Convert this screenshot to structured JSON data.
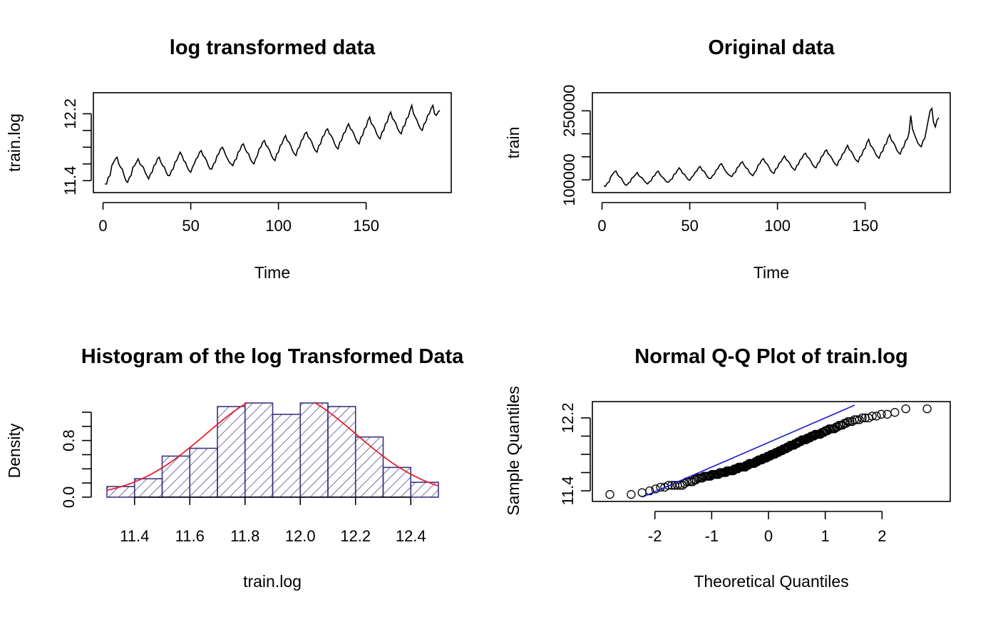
{
  "chart_data": [
    {
      "type": "line",
      "title": "log transformed data",
      "xlabel": "Time",
      "ylabel": "train.log",
      "xlim": [
        0,
        180
      ],
      "ylim": [
        11.3,
        12.4
      ],
      "x_ticks": [
        "0",
        "50",
        "100",
        "150"
      ],
      "y_ticks": [
        "11.4",
        "12.2"
      ],
      "y_tick_values": [
        11.4,
        11.6,
        11.8,
        12.0,
        12.2
      ],
      "series_color": "#000000",
      "y": [
        11.36,
        11.36,
        11.44,
        11.46,
        11.58,
        11.62,
        11.66,
        11.68,
        11.6,
        11.56,
        11.54,
        11.46,
        11.4,
        11.38,
        11.44,
        11.46,
        11.56,
        11.58,
        11.62,
        11.66,
        11.6,
        11.58,
        11.56,
        11.5,
        11.46,
        11.42,
        11.48,
        11.5,
        11.58,
        11.6,
        11.66,
        11.68,
        11.62,
        11.58,
        11.56,
        11.5,
        11.46,
        11.46,
        11.52,
        11.54,
        11.62,
        11.64,
        11.7,
        11.74,
        11.7,
        11.64,
        11.62,
        11.56,
        11.52,
        11.5,
        11.56,
        11.6,
        11.66,
        11.68,
        11.74,
        11.76,
        11.7,
        11.68,
        11.64,
        11.58,
        11.54,
        11.54,
        11.6,
        11.62,
        11.7,
        11.72,
        11.78,
        11.8,
        11.76,
        11.7,
        11.66,
        11.62,
        11.6,
        11.58,
        11.64,
        11.66,
        11.74,
        11.76,
        11.82,
        11.84,
        11.78,
        11.74,
        11.72,
        11.66,
        11.62,
        11.6,
        11.66,
        11.7,
        11.78,
        11.8,
        11.86,
        11.88,
        11.82,
        11.8,
        11.76,
        11.7,
        11.66,
        11.64,
        11.72,
        11.74,
        11.82,
        11.84,
        11.9,
        11.94,
        11.88,
        11.86,
        11.82,
        11.76,
        11.72,
        11.7,
        11.78,
        11.8,
        11.88,
        11.9,
        11.96,
        11.98,
        11.92,
        11.9,
        11.86,
        11.8,
        11.76,
        11.74,
        11.82,
        11.84,
        11.92,
        11.94,
        12.0,
        12.02,
        11.96,
        11.94,
        11.9,
        11.84,
        11.8,
        11.78,
        11.86,
        11.88,
        11.96,
        11.98,
        12.04,
        12.08,
        12.02,
        12.0,
        11.96,
        11.9,
        11.86,
        11.84,
        11.92,
        11.94,
        12.02,
        12.04,
        12.12,
        12.16,
        12.08,
        12.06,
        12.02,
        11.96,
        11.92,
        11.9,
        11.98,
        12.0,
        12.08,
        12.1,
        12.18,
        12.22,
        12.14,
        12.12,
        12.08,
        12.02,
        11.98,
        11.96,
        12.04,
        12.06,
        12.14,
        12.16,
        12.24,
        12.3,
        12.2,
        12.16,
        12.12,
        12.06,
        12.02,
        12.0,
        12.08,
        12.1,
        12.18,
        12.2,
        12.26,
        12.3,
        12.2,
        12.18,
        12.22,
        12.24
      ]
    },
    {
      "type": "line",
      "title": "Original data",
      "xlabel": "Time",
      "ylabel": "train",
      "xlim": [
        0,
        180
      ],
      "ylim": [
        80000,
        280000
      ],
      "x_ticks": [
        "0",
        "50",
        "100",
        "150"
      ],
      "y_ticks": [
        "100000",
        "250000"
      ],
      "y_tick_values": [
        100000,
        150000,
        200000,
        250000
      ],
      "series_color": "#000000",
      "y": [
        86000,
        86000,
        93000,
        95000,
        107000,
        112000,
        117000,
        119000,
        110000,
        106000,
        104000,
        96000,
        90000,
        88000,
        93000,
        95000,
        104000,
        106000,
        111000,
        116000,
        109000,
        106000,
        104000,
        98000,
        94000,
        91000,
        96000,
        98000,
        107000,
        109000,
        116000,
        119000,
        112000,
        107000,
        104000,
        99000,
        95000,
        95000,
        100000,
        102000,
        112000,
        114000,
        121000,
        126000,
        121000,
        114000,
        112000,
        106000,
        101000,
        99000,
        105000,
        109000,
        116000,
        119000,
        126000,
        129000,
        121000,
        119000,
        114000,
        107000,
        103000,
        103000,
        109000,
        112000,
        121000,
        124000,
        132000,
        135000,
        129000,
        121000,
        116000,
        112000,
        109000,
        107000,
        114000,
        116000,
        126000,
        129000,
        136000,
        139000,
        132000,
        126000,
        124000,
        116000,
        112000,
        109000,
        116000,
        121000,
        132000,
        135000,
        143000,
        146000,
        138000,
        135000,
        129000,
        121000,
        116000,
        114000,
        124000,
        126000,
        136000,
        139000,
        146000,
        152000,
        144000,
        141000,
        136000,
        128000,
        124000,
        121000,
        131000,
        134000,
        144000,
        147000,
        155000,
        158000,
        150000,
        147000,
        141000,
        133000,
        128000,
        126000,
        136000,
        139000,
        150000,
        153000,
        162000,
        165000,
        156000,
        153000,
        147000,
        139000,
        134000,
        131000,
        142000,
        145000,
        156000,
        159000,
        168000,
        175000,
        165000,
        162000,
        156000,
        147000,
        142000,
        139000,
        150000,
        153000,
        165000,
        168000,
        181000,
        188000,
        175000,
        171000,
        165000,
        156000,
        150000,
        147000,
        159000,
        162000,
        175000,
        178000,
        191000,
        198000,
        185000,
        182000,
        175000,
        165000,
        159000,
        156000,
        168000,
        171000,
        185000,
        188000,
        202000,
        240000,
        210000,
        200000,
        190000,
        180000,
        175000,
        172000,
        185000,
        190000,
        210000,
        230000,
        250000,
        255000,
        225000,
        215000,
        230000,
        235000
      ]
    },
    {
      "type": "histogram",
      "title": "Histogram of the log Transformed Data",
      "xlabel": "train.log",
      "ylabel": "Density",
      "xlim": [
        11.3,
        12.5
      ],
      "ylim": [
        0,
        1.35
      ],
      "x_ticks": [
        "11.4",
        "11.6",
        "11.8",
        "12.0",
        "12.2",
        "12.4"
      ],
      "y_ticks": [
        "0.0",
        "0.8"
      ],
      "y_tick_values": [
        0,
        0.2,
        0.4,
        0.6,
        0.8,
        1.0,
        1.2
      ],
      "bin_edges": [
        11.3,
        11.4,
        11.5,
        11.6,
        11.7,
        11.8,
        11.9,
        12.0,
        12.1,
        12.2,
        12.3,
        12.4,
        12.5
      ],
      "values": [
        0.15,
        0.26,
        0.58,
        0.69,
        1.28,
        1.33,
        1.17,
        1.33,
        1.28,
        0.85,
        0.42,
        0.21
      ],
      "bar_color": "#3b3580",
      "curve_color": "#e8202a",
      "normal_curve": {
        "mean": 11.93,
        "sd": 0.27
      }
    },
    {
      "type": "scatter",
      "title": "Normal Q-Q Plot of train.log",
      "xlabel": "Theoretical Quantiles",
      "ylabel": "Sample Quantiles",
      "xlim": [
        -2.9,
        3.0
      ],
      "ylim": [
        11.33,
        12.34
      ],
      "x_ticks": [
        "-2",
        "-1",
        "0",
        "1",
        "2"
      ],
      "x_tick_values": [
        -2,
        -1,
        0,
        1,
        2
      ],
      "y_ticks": [
        "11.4",
        "12.2"
      ],
      "y_tick_values": [
        11.4,
        11.6,
        11.8,
        12.0,
        12.2
      ],
      "point_color": "#000000",
      "line_color": "#1a1acc",
      "qq_line": {
        "intercept": 11.93,
        "slope": 0.27
      },
      "n_points": 180
    }
  ]
}
